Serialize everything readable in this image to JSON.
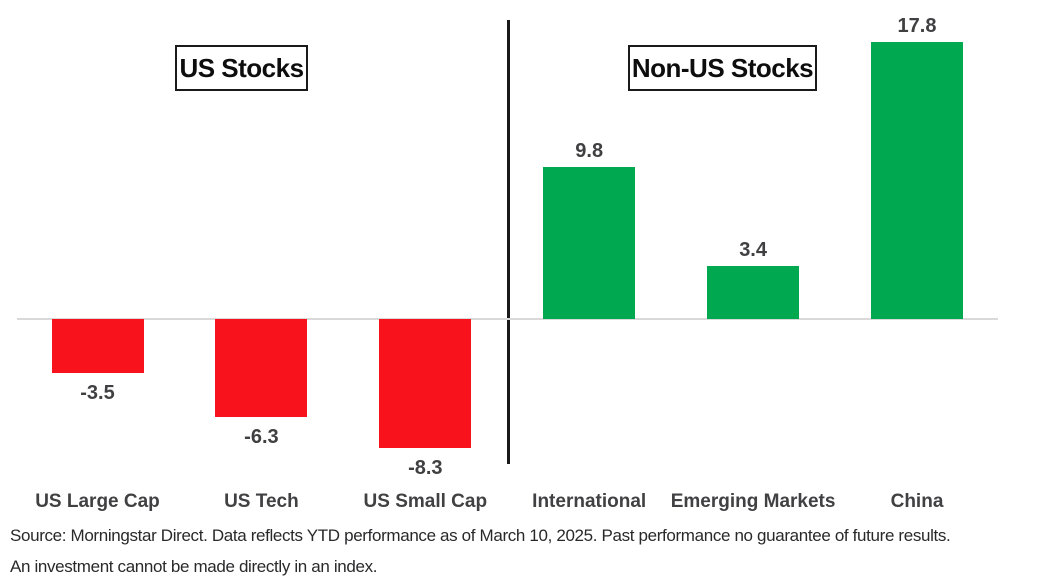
{
  "chart_data": {
    "type": "bar",
    "title": "",
    "categories": [
      "US Large Cap",
      "US Tech",
      "US Small Cap",
      "International",
      "Emerging Markets",
      "China"
    ],
    "values": [
      -3.5,
      -6.3,
      -8.3,
      9.8,
      3.4,
      17.8
    ],
    "value_labels": [
      "-3.5",
      "-6.3",
      "-8.3",
      "9.8",
      "3.4",
      "17.8"
    ],
    "groups": [
      {
        "label": "US Stocks",
        "category_indices": [
          0,
          1,
          2
        ]
      },
      {
        "label": "Non-US Stocks",
        "category_indices": [
          3,
          4,
          5
        ]
      }
    ],
    "positive_color": "#00A94F",
    "negative_color": "#F8121B",
    "baseline_value": 0,
    "ylim": [
      -10,
      20
    ],
    "grid": false,
    "legend_position": "none",
    "xlabel": "",
    "ylabel": ""
  },
  "footnote": {
    "line1": "Source: Morningstar Direct. Data reflects YTD performance as of March 10, 2025. Past performance no guarantee of future results.",
    "line2": "An investment cannot be made directly in an index."
  }
}
